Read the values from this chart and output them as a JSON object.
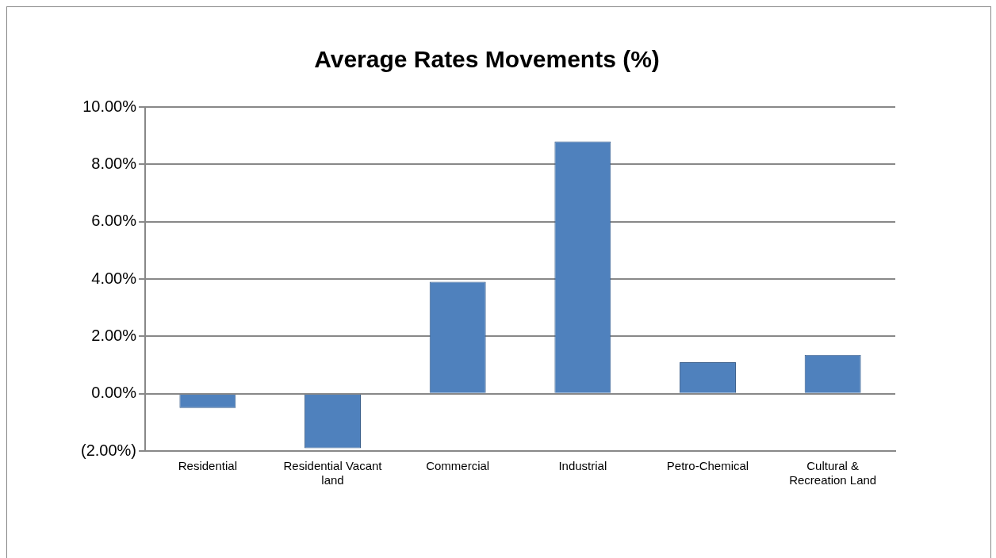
{
  "chart_data": {
    "type": "bar",
    "title": "Average Rates Movements (%)",
    "categories": [
      "Residential",
      "Residential Vacant land",
      "Commercial",
      "Industrial",
      "Petro-Chemical",
      "Cultural & Recreation Land"
    ],
    "values": [
      -0.5,
      -1.9,
      3.9,
      8.8,
      1.1,
      1.35
    ],
    "color": "#4f81bd",
    "ylim": [
      -2,
      10
    ],
    "yticks": [
      {
        "value": -2,
        "label": "(2.00%)"
      },
      {
        "value": 0,
        "label": "0.00%"
      },
      {
        "value": 2,
        "label": "2.00%"
      },
      {
        "value": 4,
        "label": "4.00%"
      },
      {
        "value": 6,
        "label": "6.00%"
      },
      {
        "value": 8,
        "label": "8.00%"
      },
      {
        "value": 10,
        "label": "10.00%"
      }
    ],
    "grid": "y"
  }
}
